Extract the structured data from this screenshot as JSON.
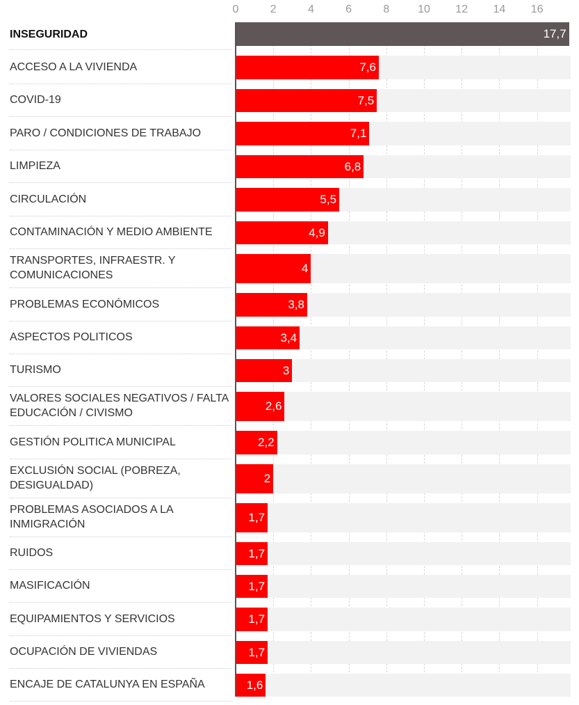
{
  "chart_data": {
    "type": "bar",
    "orientation": "horizontal",
    "title": "",
    "xlabel": "",
    "ylabel": "",
    "xlim": [
      0,
      17.7
    ],
    "x_ticks": [
      "0",
      "2",
      "4",
      "6",
      "8",
      "10",
      "12",
      "14",
      "16"
    ],
    "grid": true,
    "colors": {
      "highlight": "#5f5757",
      "default": "#ff0000",
      "background_band": "#f2f2f2"
    },
    "categories": [
      "INSEGURIDAD",
      "ACCESO A LA VIVIENDA",
      "COVID-19",
      "PARO / CONDICIONES DE TRABAJO",
      "LIMPIEZA",
      "CIRCULACIÓN",
      "CONTAMINACIÓN Y MEDIO AMBIENTE",
      "TRANSPORTES, INFRAESTR. Y COMUNICACIONES",
      "PROBLEMAS ECONÓMICOS",
      "ASPECTOS POLITICOS",
      "TURISMO",
      "VALORES SOCIALES NEGATIVOS / FALTA EDUCACIÓN / CIVISMO",
      "GESTIÓN POLITICA MUNICIPAL",
      "EXCLUSIÓN SOCIAL (POBREZA, DESIGUALDAD)",
      "PROBLEMAS ASOCIADOS A LA INMIGRACIÓN",
      "RUIDOS",
      "MASIFICACIÓN",
      "EQUIPAMIENTOS Y SERVICIOS",
      "OCUPACIÓN DE VIVIENDAS",
      "ENCAJE DE CATALUNYA EN ESPAÑA"
    ],
    "values": [
      17.7,
      7.6,
      7.5,
      7.1,
      6.8,
      5.5,
      4.9,
      4,
      3.8,
      3.4,
      3,
      2.6,
      2.2,
      2,
      1.7,
      1.7,
      1.7,
      1.7,
      1.7,
      1.6
    ],
    "value_labels": [
      "17,7",
      "7,6",
      "7,5",
      "7,1",
      "6,8",
      "5,5",
      "4,9",
      "4",
      "3,8",
      "3,4",
      "3",
      "2,6",
      "2,2",
      "2",
      "1,7",
      "1,7",
      "1,7",
      "1,7",
      "1,7",
      "1,6"
    ],
    "highlighted": [
      "INSEGURIDAD"
    ]
  }
}
